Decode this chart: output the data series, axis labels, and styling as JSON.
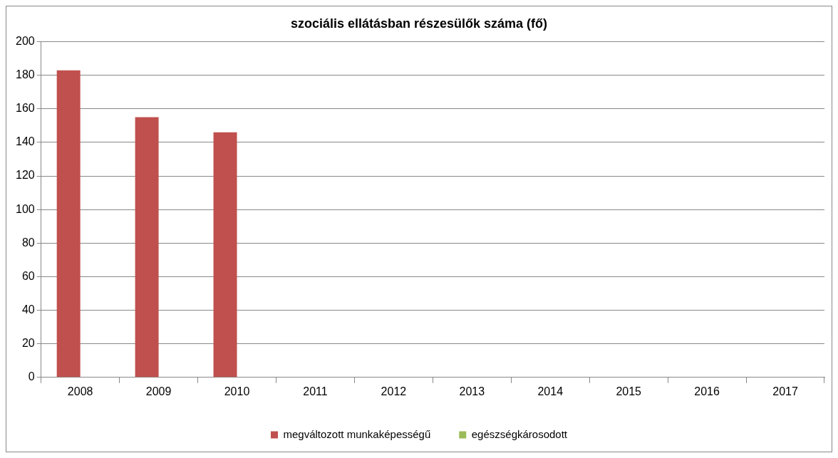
{
  "chart_data": {
    "type": "bar",
    "title": "szociális ellátásban részesülők száma (fő)",
    "categories": [
      "2008",
      "2009",
      "2010",
      "2011",
      "2012",
      "2013",
      "2014",
      "2015",
      "2016",
      "2017"
    ],
    "series": [
      {
        "name": "megváltozott munkaképességű",
        "color": "#c0504d",
        "values": [
          183,
          155,
          146,
          null,
          null,
          null,
          null,
          null,
          null,
          null
        ]
      },
      {
        "name": "egészségkárosodott",
        "color": "#9bbb59",
        "values": [
          null,
          null,
          null,
          null,
          null,
          null,
          null,
          null,
          null,
          null
        ]
      }
    ],
    "ylim": [
      0,
      200
    ],
    "yticks": [
      0,
      20,
      40,
      60,
      80,
      100,
      120,
      140,
      160,
      180,
      200
    ],
    "grid": "y",
    "legend": "bottom"
  }
}
